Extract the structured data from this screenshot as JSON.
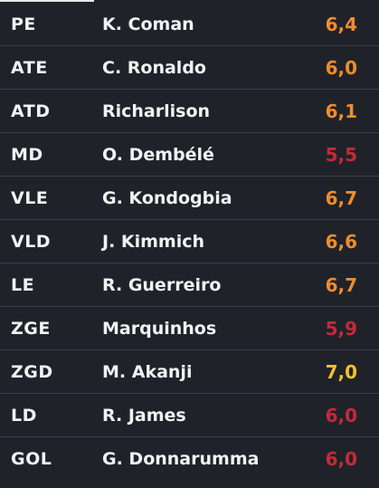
{
  "colors": {
    "background": "#1f2329",
    "text": "#f2f2f2",
    "divider": "#3a4048",
    "rating_orange": "#f08c2e",
    "rating_red": "#c42a3a",
    "rating_yellow": "#f2c12e"
  },
  "players": [
    {
      "position": "PE",
      "name": "K. Coman",
      "rating": "6,4",
      "rating_color": "#f08c2e"
    },
    {
      "position": "ATE",
      "name": "C. Ronaldo",
      "rating": "6,0",
      "rating_color": "#f08c2e"
    },
    {
      "position": "ATD",
      "name": "Richarlison",
      "rating": "6,1",
      "rating_color": "#f08c2e"
    },
    {
      "position": "MD",
      "name": "O. Dembélé",
      "rating": "5,5",
      "rating_color": "#c42a3a"
    },
    {
      "position": "VLE",
      "name": "G. Kondogbia",
      "rating": "6,7",
      "rating_color": "#f08c2e"
    },
    {
      "position": "VLD",
      "name": "J. Kimmich",
      "rating": "6,6",
      "rating_color": "#f08c2e"
    },
    {
      "position": "LE",
      "name": "R. Guerreiro",
      "rating": "6,7",
      "rating_color": "#f08c2e"
    },
    {
      "position": "ZGE",
      "name": "Marquinhos",
      "rating": "5,9",
      "rating_color": "#c42a3a"
    },
    {
      "position": "ZGD",
      "name": "M. Akanji",
      "rating": "7,0",
      "rating_color": "#f2c12e"
    },
    {
      "position": "LD",
      "name": "R. James",
      "rating": "6,0",
      "rating_color": "#c42a3a"
    },
    {
      "position": "GOL",
      "name": "G. Donnarumma",
      "rating": "6,0",
      "rating_color": "#c42a3a"
    }
  ]
}
